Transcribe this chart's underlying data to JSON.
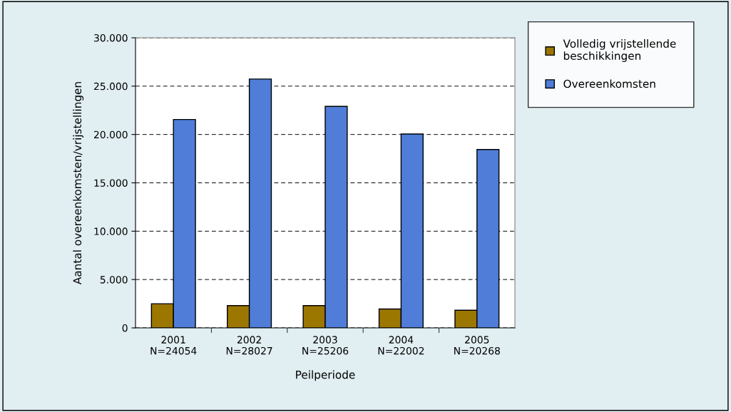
{
  "chart_data": {
    "type": "bar",
    "xlabel": "Peilperiode",
    "ylabel": "Aantal overeenkomsten/vrijstellingen",
    "categories": [
      "2001\nN=24054",
      "2002\nN=28027",
      "2003\nN=25206",
      "2004\nN=22002",
      "2005\nN=20268"
    ],
    "series": [
      {
        "name": "Volledig vrijstellende\nbeschikkingen",
        "color": "#9c7700",
        "values": [
          2500,
          2300,
          2300,
          1950,
          1820
        ]
      },
      {
        "name": "Overeenkomsten",
        "color": "#4f7dd8",
        "values": [
          21550,
          25730,
          22910,
          20050,
          18450
        ]
      }
    ],
    "ylim": [
      0,
      30000
    ],
    "yticks": [
      {
        "value": 0,
        "label": "0"
      },
      {
        "value": 5000,
        "label": "5.000"
      },
      {
        "value": 10000,
        "label": "10.000"
      },
      {
        "value": 15000,
        "label": "15.000"
      },
      {
        "value": 20000,
        "label": "20.000"
      },
      {
        "value": 25000,
        "label": "25.000"
      },
      {
        "value": 30000,
        "label": "30.000"
      }
    ],
    "grid": "y",
    "legend": "right"
  }
}
